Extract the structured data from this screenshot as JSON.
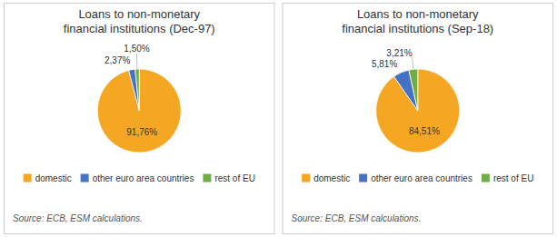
{
  "chart_data": [
    {
      "type": "pie",
      "title": "Loans to non-monetary\nfinancial institutions (Dec-97)",
      "categories": [
        "domestic",
        "other euro area countries",
        "rest of EU"
      ],
      "values": [
        91.76,
        2.37,
        1.5
      ],
      "value_labels": [
        "91,76%",
        "2,37%",
        "1,50%"
      ],
      "colors": [
        "#F5A623",
        "#4472C4",
        "#70AD47"
      ],
      "data_labels": true,
      "legend": "bottom",
      "annotations": [
        "Source: ECB, ESM calculations."
      ]
    },
    {
      "type": "pie",
      "title": "Loans to non-monetary\nfinancial institutions (Sep-18)",
      "categories": [
        "domestic",
        "other euro area countries",
        "rest of EU"
      ],
      "values": [
        84.51,
        5.81,
        3.21
      ],
      "value_labels": [
        "84,51%",
        "5,81%",
        "3,21%"
      ],
      "colors": [
        "#F5A623",
        "#4472C4",
        "#70AD47"
      ],
      "data_labels": true,
      "legend": "bottom",
      "annotations": [
        "Source: ECB, ESM calculations."
      ]
    }
  ]
}
